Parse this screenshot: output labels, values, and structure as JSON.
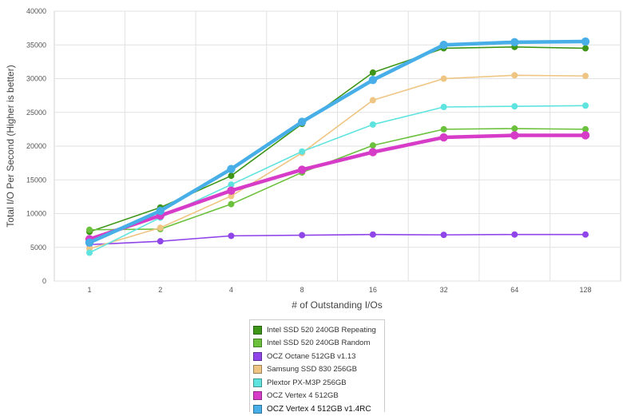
{
  "chart_data": {
    "type": "line",
    "title": "",
    "xlabel": "# of Outstanding I/Os",
    "ylabel": "Total I/O Per Second (Higher is better)",
    "categories": [
      "1",
      "2",
      "4",
      "8",
      "16",
      "32",
      "64",
      "128"
    ],
    "ylim": [
      0,
      40000
    ],
    "yticks": [
      "0",
      "5000",
      "10000",
      "15000",
      "20000",
      "25000",
      "30000",
      "35000",
      "40000"
    ],
    "grid": true,
    "legend_position": "bottom",
    "series": [
      {
        "name": "Intel SSD 520 240GB Repeating",
        "color": "#3d9617",
        "values": [
          7300,
          10900,
          15600,
          23300,
          30900,
          34500,
          34700,
          34500
        ]
      },
      {
        "name": "Intel SSD 520 240GB Random",
        "color": "#6cc13c",
        "values": [
          7600,
          7700,
          11400,
          16100,
          20100,
          22500,
          22600,
          22500
        ]
      },
      {
        "name": "OCZ Octane 512GB v1.13",
        "color": "#8f45e8",
        "values": [
          5400,
          5900,
          6700,
          6800,
          6900,
          6850,
          6900,
          6900
        ]
      },
      {
        "name": "Samsung SSD 830 256GB",
        "color": "#efc583",
        "values": [
          4800,
          7900,
          12600,
          19000,
          26800,
          30000,
          30500,
          30400
        ]
      },
      {
        "name": "Plextor PX-M3P 256GB",
        "color": "#5fe3df",
        "values": [
          4200,
          9400,
          14300,
          19200,
          23200,
          25800,
          25900,
          26000
        ]
      },
      {
        "name": "OCZ Vertex 4 512GB",
        "color": "#d63cc8",
        "values": [
          6200,
          9700,
          13400,
          16500,
          19100,
          21300,
          21600,
          21600
        ]
      },
      {
        "name": "OCZ Vertex 4 512GB v1.4RC",
        "color": "#47aee8",
        "values": [
          5700,
          10400,
          16600,
          23600,
          29800,
          35000,
          35400,
          35500
        ]
      }
    ]
  }
}
